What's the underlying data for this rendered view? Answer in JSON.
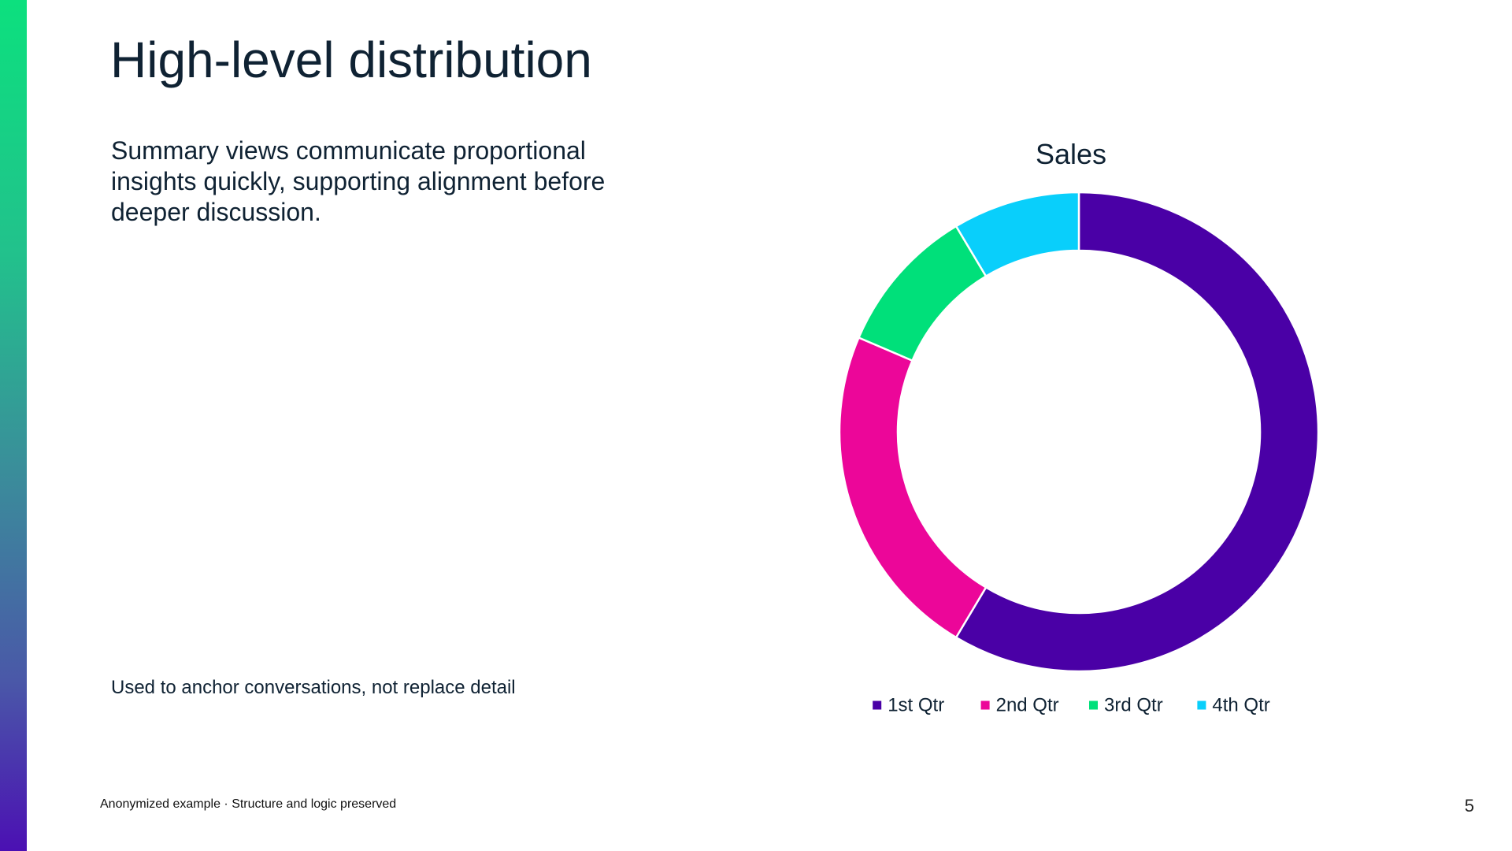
{
  "slide": {
    "title": "High-level distribution",
    "summary": "Summary views communicate proportional insights quickly, supporting alignment before deeper discussion.",
    "note": "Used to anchor conversations, not replace detail",
    "footer": "Anonymized example · Structure and logic preserved",
    "page_number": "5"
  },
  "colors": {
    "accent_top": "#0ce07e",
    "accent_bottom": "#4b10b3",
    "text": "#0f2233"
  },
  "chart_data": {
    "type": "pie",
    "variant": "doughnut",
    "title": "Sales",
    "categories": [
      "1st Qtr",
      "2nd Qtr",
      "3rd Qtr",
      "4th Qtr"
    ],
    "values": [
      8.2,
      3.2,
      1.4,
      1.2
    ],
    "colors": [
      "#4a00a6",
      "#ec0699",
      "#00e07a",
      "#09cffb"
    ],
    "legend_position": "bottom",
    "data_labels": false
  }
}
